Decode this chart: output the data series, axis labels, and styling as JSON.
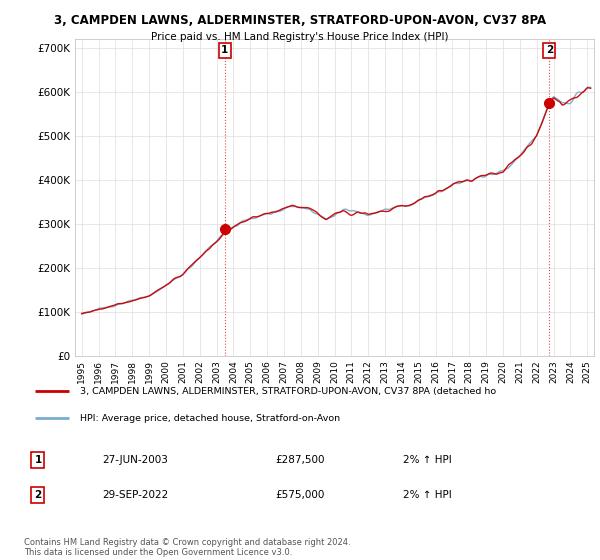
{
  "title1": "3, CAMPDEN LAWNS, ALDERMINSTER, STRATFORD-UPON-AVON, CV37 8PA",
  "title2": "Price paid vs. HM Land Registry's House Price Index (HPI)",
  "ytick_labels": [
    "£0",
    "£100K",
    "£200K",
    "£300K",
    "£400K",
    "£500K",
    "£600K",
    "£700K"
  ],
  "ytick_vals": [
    0,
    100000,
    200000,
    300000,
    400000,
    500000,
    600000,
    700000
  ],
  "sale1_x": 2003.49,
  "sale1_value": 287500,
  "sale2_x": 2022.745,
  "sale2_value": 575000,
  "sale1_date_str": "27-JUN-2003",
  "sale1_price_str": "£287,500",
  "sale1_hpi_str": "2% ↑ HPI",
  "sale2_date_str": "29-SEP-2022",
  "sale2_price_str": "£575,000",
  "sale2_hpi_str": "2% ↑ HPI",
  "legend_red_label": "3, CAMPDEN LAWNS, ALDERMINSTER, STRATFORD-UPON-AVON, CV37 8PA (detached ho",
  "legend_blue_label": "HPI: Average price, detached house, Stratford-on-Avon",
  "footer_text": "Contains HM Land Registry data © Crown copyright and database right 2024.\nThis data is licensed under the Open Government Licence v3.0.",
  "red_color": "#cc0000",
  "blue_color": "#7aadcc",
  "grid_color": "#dddddd",
  "sale_dot_color": "#cc0000",
  "xlim_left": 1994.6,
  "xlim_right": 2025.4,
  "ylim_top": 720000,
  "ylim_bottom": 0
}
